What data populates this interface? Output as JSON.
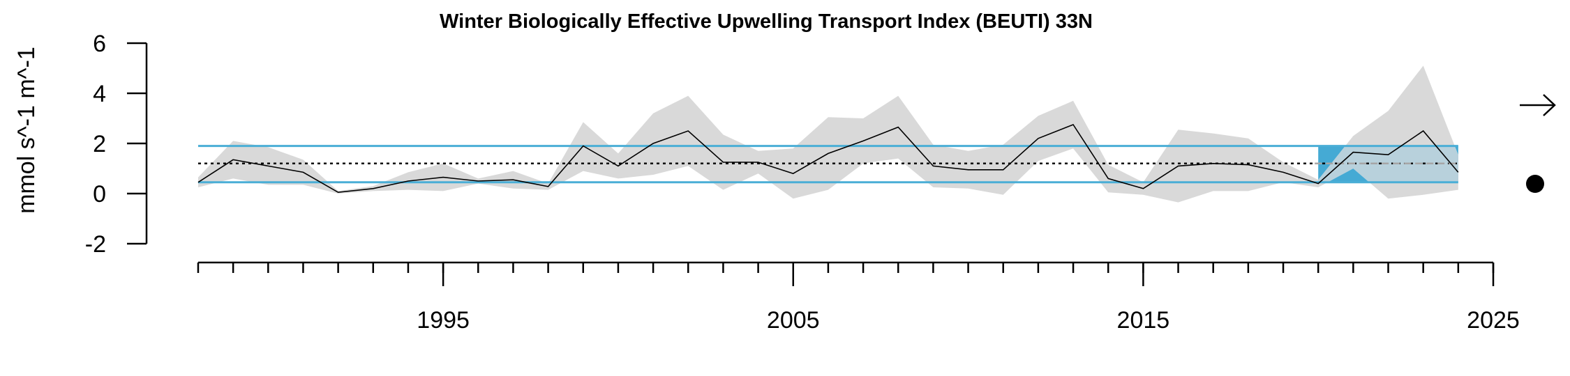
{
  "chart_data": {
    "type": "line",
    "title": "Winter Biologically Effective Upwelling Transport Index (BEUTI) 33N",
    "ylabel": "mmol s^-1 m^-1",
    "xlabel": "",
    "xlim": [
      1988.2,
      2025
    ],
    "ylim": [
      -2,
      6
    ],
    "y_ticks": [
      "-2",
      "0",
      "2",
      "4",
      "6"
    ],
    "y_tick_values": [
      -2,
      0,
      2,
      4,
      6
    ],
    "x_ticks": [
      "1995",
      "2005",
      "2015",
      "2025"
    ],
    "x_tick_values": [
      1995,
      2005,
      2015,
      2025
    ],
    "x_minor_ticks_every": 1,
    "series": [
      {
        "x": [
          1988,
          1989,
          1990,
          1991,
          1992,
          1993,
          1994,
          1995,
          1996,
          1997,
          1998,
          1999,
          2000,
          2001,
          2002,
          2003,
          2004,
          2005,
          2006,
          2007,
          2008,
          2009,
          2010,
          2011,
          2012,
          2013,
          2014,
          2015,
          2016,
          2017,
          2018,
          2019,
          2020,
          2021,
          2022,
          2023,
          2024
        ],
        "values": [
          0.45,
          1.35,
          1.1,
          0.85,
          0.05,
          0.2,
          0.5,
          0.65,
          0.5,
          0.55,
          0.28,
          1.9,
          1.1,
          2.0,
          2.5,
          1.25,
          1.25,
          0.8,
          1.6,
          2.1,
          2.65,
          1.1,
          0.95,
          0.95,
          2.2,
          2.75,
          0.6,
          0.2,
          1.1,
          1.2,
          1.15,
          0.85,
          0.4,
          1.65,
          1.55,
          2.5,
          0.85
        ],
        "lower": [
          0.25,
          0.6,
          0.35,
          0.35,
          0.0,
          0.1,
          0.15,
          0.1,
          0.4,
          0.2,
          0.15,
          0.9,
          0.6,
          0.75,
          1.1,
          0.15,
          0.8,
          -0.2,
          0.15,
          1.2,
          1.4,
          0.25,
          0.2,
          -0.05,
          1.3,
          1.8,
          0.05,
          -0.05,
          -0.35,
          0.1,
          0.1,
          0.45,
          0.25,
          1.0,
          -0.2,
          -0.05,
          0.15
        ],
        "upper": [
          0.65,
          2.1,
          1.85,
          1.35,
          0.1,
          0.3,
          0.85,
          1.2,
          0.6,
          0.9,
          0.4,
          2.85,
          1.6,
          3.2,
          3.9,
          2.35,
          1.7,
          1.8,
          3.05,
          3.0,
          3.9,
          1.95,
          1.7,
          1.95,
          3.1,
          3.7,
          1.15,
          0.45,
          2.55,
          2.4,
          2.2,
          1.25,
          0.55,
          2.3,
          3.3,
          5.1,
          1.55
        ]
      }
    ],
    "reference_lines": {
      "mean": 1.2,
      "upper_sd": 1.9,
      "lower_sd": 0.45
    },
    "recent_window": [
      2020,
      2024
    ],
    "trend_indicator": "right-arrow",
    "mean_indicator": "filled-circle",
    "grid": false,
    "colors": {
      "line": "#000000",
      "ribbon": "#d9d9d9",
      "sd_line": "#4aaed6",
      "sd_fill": "#45aad4",
      "recent_band": "#b8d1dc",
      "mean_line": "#000000",
      "mean_dash_overlay": "#a6a6a6"
    }
  }
}
